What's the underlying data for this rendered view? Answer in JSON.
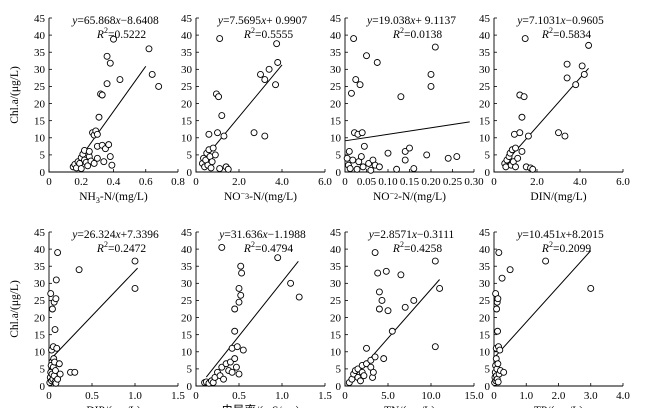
{
  "chart_data": [
    {
      "type": "scatter",
      "xlabel": "NH3-N/(mg/L)",
      "ylabel": "Chl.a/(μg/L)",
      "equation": "y=65.868x−8.6408",
      "r2": "R2=0.5222",
      "xlim": [
        0,
        0.8
      ],
      "xticks": [
        "0",
        "0.2",
        "0.4",
        "0.6",
        "0.8"
      ],
      "ylim": [
        0,
        45
      ],
      "yticks": [
        "0",
        "5",
        "10",
        "15",
        "20",
        "25",
        "30",
        "35",
        "40",
        "45"
      ],
      "fit": {
        "slope": 65.868,
        "intercept": -8.6408,
        "xrange": [
          0.15,
          0.6
        ]
      },
      "points": [
        [
          0.15,
          1.5
        ],
        [
          0.16,
          2.2
        ],
        [
          0.17,
          1.2
        ],
        [
          0.18,
          3.0
        ],
        [
          0.19,
          2.5
        ],
        [
          0.2,
          4.2
        ],
        [
          0.2,
          1.0
        ],
        [
          0.21,
          5.2
        ],
        [
          0.22,
          3.5
        ],
        [
          0.22,
          6.3
        ],
        [
          0.23,
          2.8
        ],
        [
          0.24,
          1.8
        ],
        [
          0.25,
          4.5
        ],
        [
          0.25,
          6.0
        ],
        [
          0.26,
          3.2
        ],
        [
          0.27,
          11.5
        ],
        [
          0.28,
          10.8
        ],
        [
          0.28,
          2.5
        ],
        [
          0.29,
          12.0
        ],
        [
          0.3,
          11.0
        ],
        [
          0.3,
          7.5
        ],
        [
          0.31,
          16.0
        ],
        [
          0.3,
          4.0
        ],
        [
          0.32,
          22.8
        ],
        [
          0.33,
          22.5
        ],
        [
          0.33,
          7.8
        ],
        [
          0.34,
          3.0
        ],
        [
          0.35,
          6.8
        ],
        [
          0.36,
          33.8
        ],
        [
          0.36,
          25.8
        ],
        [
          0.37,
          8.0
        ],
        [
          0.38,
          31.8
        ],
        [
          0.38,
          4.5
        ],
        [
          0.39,
          2.0
        ],
        [
          0.4,
          38.8
        ],
        [
          0.44,
          27.0
        ],
        [
          0.62,
          36.0
        ],
        [
          0.64,
          28.5
        ],
        [
          0.68,
          25.0
        ]
      ]
    },
    {
      "type": "scatter",
      "xlabel": "NO3−-N/(mg/L)",
      "ylabel": "",
      "equation": "y=7.5695x+ 0.9907",
      "r2": "R2=0.5555",
      "xlim": [
        0,
        6
      ],
      "xticks": [
        "0",
        "2.0",
        "4.0",
        "6.0"
      ],
      "ylim": [
        0,
        45
      ],
      "yticks": [
        "0",
        "5",
        "10",
        "15",
        "20",
        "25",
        "30",
        "35",
        "40",
        "45"
      ],
      "fit": {
        "slope": 7.5695,
        "intercept": 0.9907,
        "xrange": [
          0.2,
          4.0
        ]
      },
      "points": [
        [
          0.3,
          2.5
        ],
        [
          0.35,
          4.0
        ],
        [
          0.4,
          1.5
        ],
        [
          0.45,
          3.5
        ],
        [
          0.5,
          5.5
        ],
        [
          0.55,
          2.0
        ],
        [
          0.6,
          6.5
        ],
        [
          0.6,
          11.0
        ],
        [
          0.65,
          4.5
        ],
        [
          0.7,
          1.2
        ],
        [
          0.75,
          3.0
        ],
        [
          0.8,
          7.0
        ],
        [
          0.9,
          5.0
        ],
        [
          0.95,
          22.8
        ],
        [
          1.0,
          11.5
        ],
        [
          1.05,
          22.0
        ],
        [
          1.1,
          1.0
        ],
        [
          1.1,
          39.0
        ],
        [
          1.2,
          16.5
        ],
        [
          1.3,
          10.5
        ],
        [
          1.4,
          1.5
        ],
        [
          1.5,
          0.8
        ],
        [
          2.7,
          11.5
        ],
        [
          3.0,
          28.5
        ],
        [
          3.2,
          27.0
        ],
        [
          3.2,
          10.5
        ],
        [
          3.4,
          30.0
        ],
        [
          3.7,
          25.5
        ],
        [
          3.75,
          37.5
        ],
        [
          3.8,
          32.0
        ]
      ]
    },
    {
      "type": "scatter",
      "xlabel": "NO2−-N/(mg/L)",
      "ylabel": "",
      "equation": "y=19.038x+ 9.1137",
      "r2": "R2=0.0138",
      "xlim": [
        0,
        0.3
      ],
      "xticks": [
        "0",
        "0.05",
        "0.10",
        "0.15",
        "0.20",
        "0.25",
        "0.30"
      ],
      "ylim": [
        0,
        45
      ],
      "yticks": [
        "0",
        "5",
        "10",
        "15",
        "20",
        "25",
        "30",
        "35",
        "40",
        "45"
      ],
      "fit": {
        "slope": 19.038,
        "intercept": 9.1137,
        "xrange": [
          0.0,
          0.29
        ]
      },
      "points": [
        [
          0.005,
          4.0
        ],
        [
          0.008,
          2.0
        ],
        [
          0.01,
          6.0
        ],
        [
          0.012,
          1.0
        ],
        [
          0.015,
          23.0
        ],
        [
          0.018,
          3.5
        ],
        [
          0.02,
          39.0
        ],
        [
          0.022,
          11.5
        ],
        [
          0.025,
          27.0
        ],
        [
          0.028,
          0.8
        ],
        [
          0.03,
          11.0
        ],
        [
          0.032,
          3.0
        ],
        [
          0.035,
          25.5
        ],
        [
          0.038,
          4.5
        ],
        [
          0.04,
          11.5
        ],
        [
          0.042,
          1.5
        ],
        [
          0.045,
          7.5
        ],
        [
          0.05,
          34.0
        ],
        [
          0.055,
          2.5
        ],
        [
          0.06,
          0.5
        ],
        [
          0.065,
          3.5
        ],
        [
          0.07,
          2.0
        ],
        [
          0.075,
          32.0
        ],
        [
          0.08,
          1.5
        ],
        [
          0.1,
          5.5
        ],
        [
          0.12,
          0.8
        ],
        [
          0.13,
          22.0
        ],
        [
          0.14,
          3.5
        ],
        [
          0.14,
          6.0
        ],
        [
          0.15,
          7.0
        ],
        [
          0.16,
          1.0
        ],
        [
          0.19,
          5.0
        ],
        [
          0.2,
          28.5
        ],
        [
          0.2,
          25.0
        ],
        [
          0.21,
          36.5
        ],
        [
          0.24,
          4.0
        ],
        [
          0.26,
          4.5
        ]
      ]
    },
    {
      "type": "scatter",
      "xlabel": "DIN/(mg/L)",
      "ylabel": "",
      "equation": "y=7.1031x−0.9605",
      "r2": "R2=0.5834",
      "xlim": [
        0,
        6
      ],
      "xticks": [
        "0",
        "2.0",
        "4.0",
        "6.0"
      ],
      "ylim": [
        0,
        45
      ],
      "yticks": [
        "0",
        "5",
        "10",
        "15",
        "20",
        "25",
        "30",
        "35",
        "40",
        "45"
      ],
      "fit": {
        "slope": 7.1031,
        "intercept": -0.9605,
        "xrange": [
          0.45,
          4.4
        ]
      },
      "points": [
        [
          0.5,
          2.5
        ],
        [
          0.55,
          1.5
        ],
        [
          0.6,
          3.5
        ],
        [
          0.7,
          4.5
        ],
        [
          0.75,
          5.5
        ],
        [
          0.8,
          2.0
        ],
        [
          0.85,
          6.5
        ],
        [
          0.9,
          3.0
        ],
        [
          0.95,
          11.0
        ],
        [
          1.0,
          1.5
        ],
        [
          1.0,
          7.0
        ],
        [
          1.1,
          4.0
        ],
        [
          1.2,
          11.5
        ],
        [
          1.2,
          22.5
        ],
        [
          1.3,
          16.0
        ],
        [
          1.3,
          6.0
        ],
        [
          1.4,
          22.0
        ],
        [
          1.45,
          39.0
        ],
        [
          1.5,
          1.5
        ],
        [
          1.6,
          10.5
        ],
        [
          1.7,
          1.2
        ],
        [
          1.8,
          0.8
        ],
        [
          3.0,
          11.5
        ],
        [
          3.3,
          10.5
        ],
        [
          3.4,
          27.5
        ],
        [
          3.4,
          31.5
        ],
        [
          3.8,
          25.5
        ],
        [
          4.1,
          31.0
        ],
        [
          4.2,
          28.5
        ],
        [
          4.4,
          37.0
        ]
      ]
    },
    {
      "type": "scatter",
      "xlabel": "DIP/(mg/L)",
      "ylabel": "Chl.a/(μg/L)",
      "equation": "y=26.324x+7.3396",
      "r2": "R2=0.2472",
      "xlim": [
        0,
        1.5
      ],
      "xticks": [
        "0",
        "0.5",
        "1.0",
        "1.5"
      ],
      "ylim": [
        0,
        45
      ],
      "yticks": [
        "0",
        "5",
        "10",
        "15",
        "20",
        "25",
        "30",
        "35",
        "40",
        "45"
      ],
      "fit": {
        "slope": 26.324,
        "intercept": 7.3396,
        "xrange": [
          0.0,
          1.03
        ]
      },
      "points": [
        [
          0.01,
          1.0
        ],
        [
          0.015,
          2.5
        ],
        [
          0.02,
          4.0
        ],
        [
          0.02,
          27.0
        ],
        [
          0.025,
          6.0
        ],
        [
          0.03,
          1.5
        ],
        [
          0.03,
          10.5
        ],
        [
          0.035,
          3.5
        ],
        [
          0.04,
          22.5
        ],
        [
          0.045,
          2.0
        ],
        [
          0.05,
          5.5
        ],
        [
          0.05,
          11.5
        ],
        [
          0.055,
          8.0
        ],
        [
          0.06,
          24.5
        ],
        [
          0.06,
          3.0
        ],
        [
          0.065,
          7.0
        ],
        [
          0.07,
          1.2
        ],
        [
          0.07,
          16.5
        ],
        [
          0.075,
          4.5
        ],
        [
          0.08,
          25.5
        ],
        [
          0.08,
          0.8
        ],
        [
          0.085,
          31.0
        ],
        [
          0.09,
          11.0
        ],
        [
          0.1,
          39.0
        ],
        [
          0.1,
          2.0
        ],
        [
          0.12,
          6.5
        ],
        [
          0.13,
          3.5
        ],
        [
          0.25,
          4.0
        ],
        [
          0.3,
          4.0
        ],
        [
          0.35,
          34.0
        ],
        [
          1.0,
          36.5
        ],
        [
          1.0,
          28.5
        ]
      ]
    },
    {
      "type": "scatter",
      "xlabel": "电导率/(mS/cm)",
      "ylabel": "",
      "equation": "y=31.636x−1.1988",
      "r2": "R2=0.4794",
      "xlim": [
        0,
        1.5
      ],
      "xticks": [
        "0",
        "0.5",
        "1.0",
        "1.5"
      ],
      "ylim": [
        0,
        45
      ],
      "yticks": [
        "0",
        "5",
        "10",
        "15",
        "20",
        "25",
        "30",
        "35",
        "40",
        "45"
      ],
      "fit": {
        "slope": 31.636,
        "intercept": -1.1988,
        "xrange": [
          0.12,
          1.19
        ]
      },
      "points": [
        [
          0.1,
          1.0
        ],
        [
          0.12,
          1.2
        ],
        [
          0.15,
          0.8
        ],
        [
          0.18,
          1.5
        ],
        [
          0.2,
          1.0
        ],
        [
          0.22,
          2.5
        ],
        [
          0.25,
          4.0
        ],
        [
          0.28,
          3.0
        ],
        [
          0.3,
          5.5
        ],
        [
          0.3,
          40.5
        ],
        [
          0.32,
          2.0
        ],
        [
          0.35,
          6.5
        ],
        [
          0.38,
          4.5
        ],
        [
          0.4,
          7.0
        ],
        [
          0.42,
          11.0
        ],
        [
          0.42,
          4.0
        ],
        [
          0.45,
          16.0
        ],
        [
          0.45,
          22.5
        ],
        [
          0.45,
          8.0
        ],
        [
          0.47,
          5.5
        ],
        [
          0.48,
          11.5
        ],
        [
          0.5,
          3.5
        ],
        [
          0.5,
          24.5
        ],
        [
          0.5,
          28.5
        ],
        [
          0.52,
          26.5
        ],
        [
          0.52,
          35.0
        ],
        [
          0.53,
          33.0
        ],
        [
          0.55,
          10.5
        ],
        [
          0.95,
          37.5
        ],
        [
          1.1,
          30.0
        ],
        [
          1.2,
          26.0
        ]
      ]
    },
    {
      "type": "scatter",
      "xlabel": "TN/(mg/L)",
      "ylabel": "",
      "equation": "y=2.8571x−0.3111",
      "r2": "R2=0.4258",
      "xlim": [
        0,
        15
      ],
      "xticks": [
        "0",
        "5.0",
        "10.0",
        "15.0"
      ],
      "ylim": [
        0,
        45
      ],
      "yticks": [
        "0",
        "5",
        "10",
        "15",
        "20",
        "25",
        "30",
        "35",
        "40",
        "45"
      ],
      "fit": {
        "slope": 2.8571,
        "intercept": -0.3111,
        "xrange": [
          0.5,
          11.0
        ]
      },
      "points": [
        [
          0.5,
          1.0
        ],
        [
          0.8,
          2.0
        ],
        [
          1.0,
          3.5
        ],
        [
          1.2,
          4.5
        ],
        [
          1.5,
          2.5
        ],
        [
          1.5,
          5.0
        ],
        [
          1.8,
          1.5
        ],
        [
          2.0,
          6.0
        ],
        [
          2.0,
          4.0
        ],
        [
          2.2,
          3.0
        ],
        [
          2.5,
          11.0
        ],
        [
          2.5,
          6.5
        ],
        [
          3.0,
          5.5
        ],
        [
          3.0,
          7.5
        ],
        [
          3.2,
          2.5
        ],
        [
          3.3,
          4.0
        ],
        [
          3.5,
          8.5
        ],
        [
          3.5,
          39.0
        ],
        [
          3.8,
          33.0
        ],
        [
          4.0,
          22.5
        ],
        [
          4.0,
          27.5
        ],
        [
          4.3,
          25.0
        ],
        [
          4.5,
          8.0
        ],
        [
          4.8,
          33.5
        ],
        [
          5.0,
          22.0
        ],
        [
          5.5,
          16.0
        ],
        [
          6.5,
          32.5
        ],
        [
          7.0,
          23.0
        ],
        [
          8.0,
          25.0
        ],
        [
          10.5,
          36.5
        ],
        [
          10.5,
          11.5
        ],
        [
          11.0,
          28.5
        ]
      ]
    },
    {
      "type": "scatter",
      "xlabel": "TP/(mg/L)",
      "ylabel": "",
      "equation": "y=10.451x+8.2015",
      "r2": "R2=0.2099",
      "xlim": [
        0,
        4
      ],
      "xticks": [
        "0",
        "1.0",
        "2.0",
        "3.0",
        "4.0"
      ],
      "ylim": [
        0,
        45
      ],
      "yticks": [
        "0",
        "5",
        "10",
        "15",
        "20",
        "25",
        "30",
        "35",
        "40",
        "45"
      ],
      "fit": {
        "slope": 10.451,
        "intercept": 8.2015,
        "xrange": [
          0.0,
          3.0
        ]
      },
      "points": [
        [
          0.02,
          1.0
        ],
        [
          0.03,
          2.5
        ],
        [
          0.04,
          4.0
        ],
        [
          0.05,
          6.0
        ],
        [
          0.05,
          27.0
        ],
        [
          0.06,
          1.5
        ],
        [
          0.07,
          8.0
        ],
        [
          0.07,
          11.0
        ],
        [
          0.08,
          3.0
        ],
        [
          0.08,
          22.5
        ],
        [
          0.09,
          5.0
        ],
        [
          0.1,
          24.5
        ],
        [
          0.1,
          2.0
        ],
        [
          0.11,
          16.0
        ],
        [
          0.12,
          6.5
        ],
        [
          0.12,
          25.5
        ],
        [
          0.13,
          1.2
        ],
        [
          0.14,
          11.5
        ],
        [
          0.15,
          39.0
        ],
        [
          0.16,
          3.5
        ],
        [
          0.18,
          10.5
        ],
        [
          0.2,
          4.5
        ],
        [
          0.25,
          31.5
        ],
        [
          0.3,
          4.0
        ],
        [
          0.5,
          34.0
        ],
        [
          1.6,
          36.5
        ],
        [
          3.0,
          28.5
        ]
      ]
    }
  ]
}
